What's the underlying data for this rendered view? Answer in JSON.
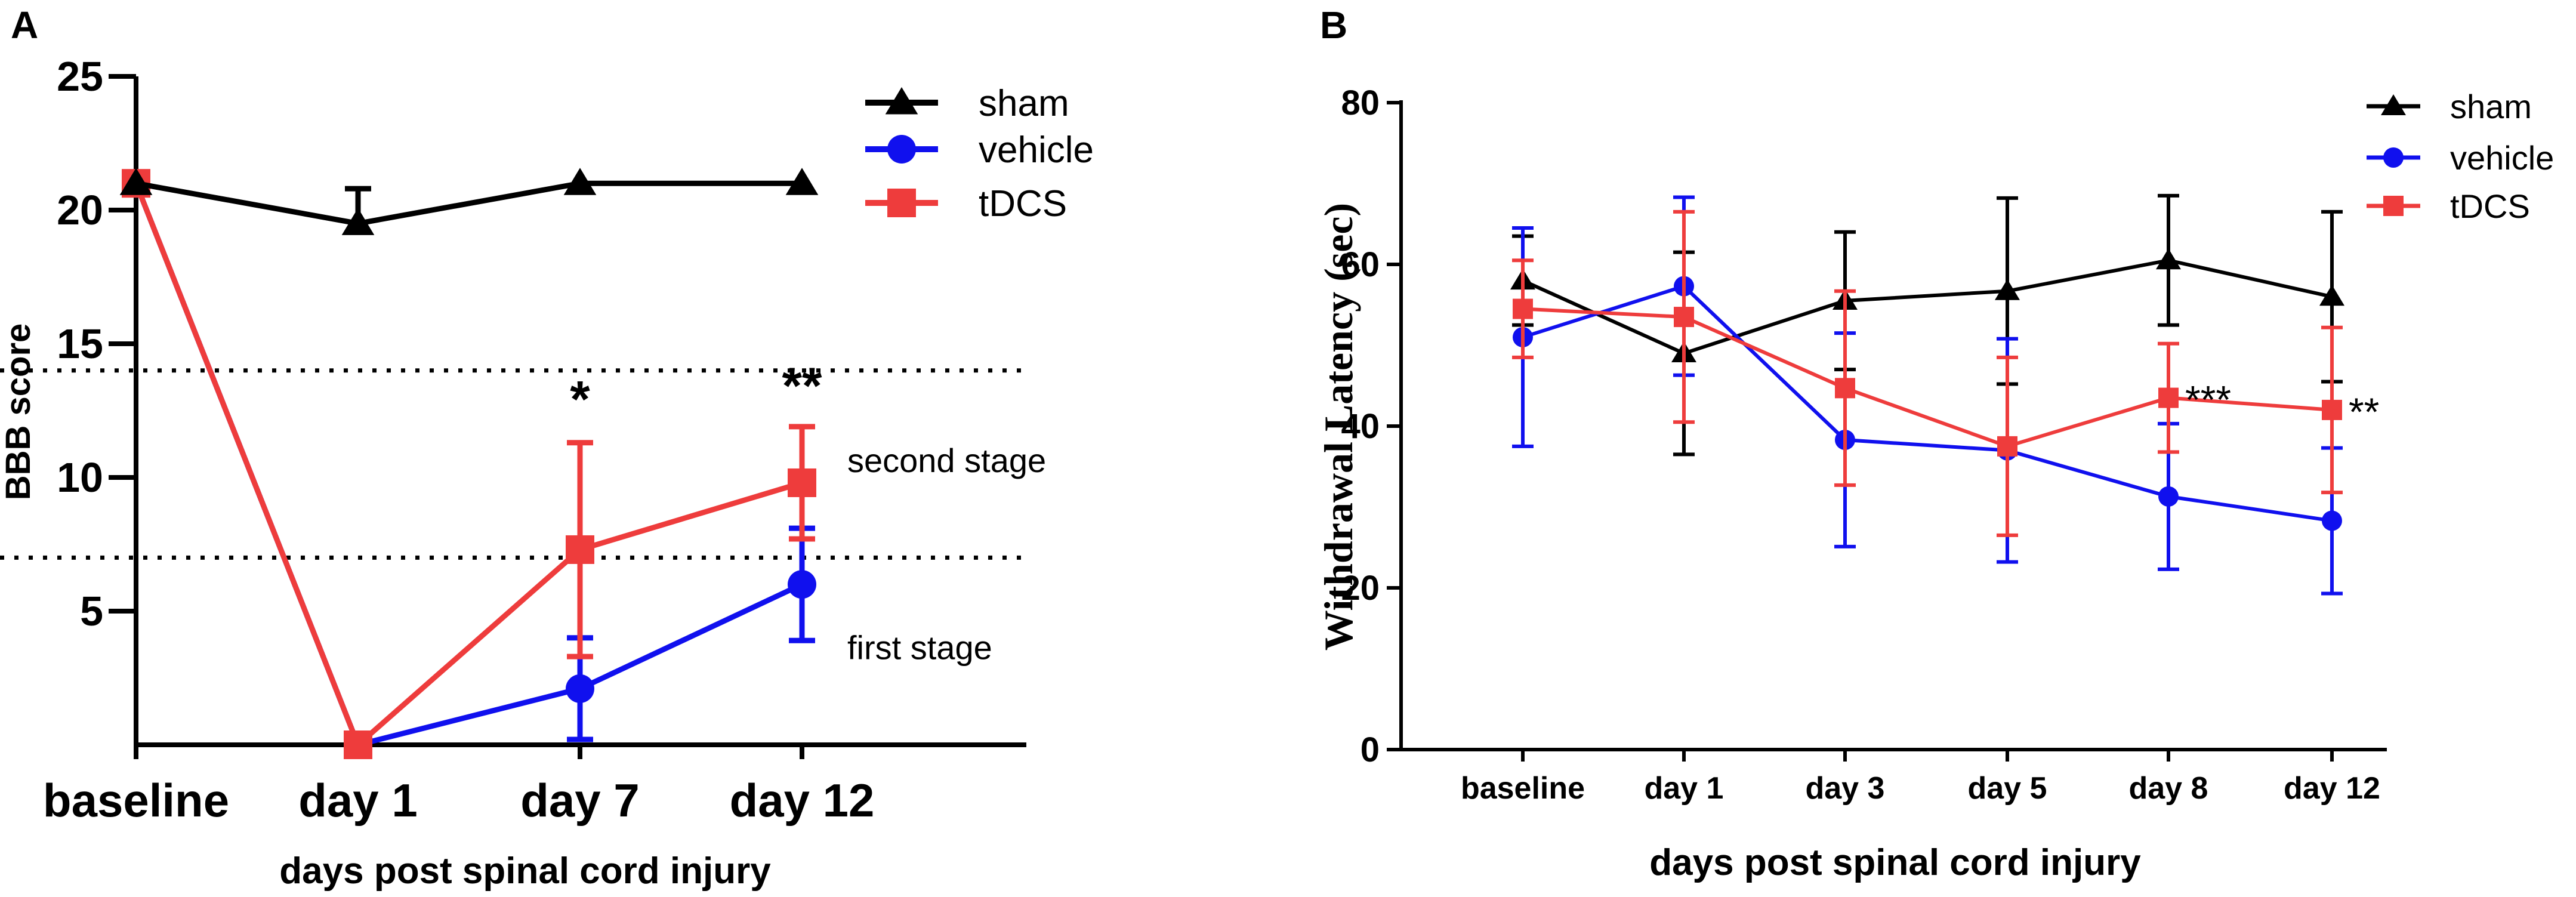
{
  "chart_data": [
    {
      "panel_label": "A",
      "type": "line",
      "title": "",
      "xlabel": "days post spinal cord injury",
      "ylabel": "BBB score",
      "categories": [
        "baseline",
        "day 1",
        "day 7",
        "day 12"
      ],
      "ylim": [
        0,
        25
      ],
      "yticks": [
        "5",
        "10",
        "15",
        "20",
        "25"
      ],
      "legend_position": "top-right",
      "series": [
        {
          "name": "sham",
          "color": "#000000",
          "marker": "triangle",
          "values": [
            21,
            19.5,
            21,
            21
          ],
          "error": [
            null,
            1.3,
            null,
            null
          ]
        },
        {
          "name": "vehicle",
          "color": "#1010ee",
          "marker": "circle",
          "values": [
            21,
            0,
            2.1,
            6.0
          ],
          "error": [
            null,
            null,
            1.9,
            2.1
          ]
        },
        {
          "name": "tDCS",
          "color": "#ee3c3c",
          "marker": "square",
          "values": [
            21,
            0,
            7.3,
            9.8
          ],
          "error": [
            null,
            null,
            4.0,
            2.1
          ]
        }
      ],
      "reference_lines": [
        {
          "value": 14,
          "style": "dotted"
        },
        {
          "value": 7,
          "style": "dotted"
        }
      ],
      "annotations": [
        {
          "text": "second stage",
          "x_category": 3,
          "y": 10.6
        },
        {
          "text": "first stage",
          "x_category": 3,
          "y": 3.6
        }
      ],
      "significance": [
        {
          "text": "*",
          "x_category": 2,
          "y": 12
        },
        {
          "text": "**",
          "x_category": 3,
          "y": 12.5
        }
      ]
    },
    {
      "panel_label": "B",
      "type": "line",
      "title": "",
      "xlabel": "days post spinal cord injury",
      "ylabel": "Withdrawal Latency (sec)",
      "categories": [
        "baseline",
        "day 1",
        "day 3",
        "day 5",
        "day 8",
        "day 12"
      ],
      "ylim": [
        0,
        80
      ],
      "yticks": [
        "0",
        "20",
        "40",
        "60",
        "80"
      ],
      "legend_position": "top-right",
      "series": [
        {
          "name": "sham",
          "color": "#000000",
          "marker": "triangle",
          "values": [
            58,
            49,
            55.5,
            56.7,
            60.5,
            56
          ],
          "error": [
            5.5,
            12.5,
            8.5,
            11.5,
            8,
            10.5
          ]
        },
        {
          "name": "vehicle",
          "color": "#1010ee",
          "marker": "circle",
          "values": [
            51,
            57.3,
            38.3,
            37,
            31.3,
            28.3
          ],
          "error": [
            13.5,
            11,
            13.2,
            13.8,
            9,
            9
          ]
        },
        {
          "name": "tDCS",
          "color": "#ee3c3c",
          "marker": "square",
          "values": [
            54.5,
            53.5,
            44.7,
            37.5,
            43.5,
            42
          ],
          "error": [
            6,
            13,
            12,
            11,
            6.7,
            10.2
          ]
        }
      ],
      "significance": [
        {
          "text": "***",
          "x_category": 4,
          "y": 43.5
        },
        {
          "text": "**",
          "x_category": 5,
          "y": 42
        }
      ]
    }
  ]
}
